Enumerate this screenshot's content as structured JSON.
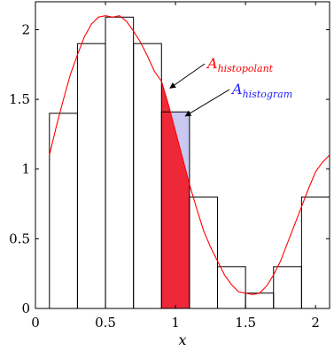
{
  "chart_data": {
    "type": "bar",
    "xlabel": "x",
    "xlim": [
      0,
      2.1
    ],
    "ylim": [
      0,
      2.2
    ],
    "xticks": [
      0,
      0.5,
      1,
      1.5,
      2
    ],
    "yticks": [
      0,
      0.5,
      1,
      1.5,
      2
    ],
    "xtick_labels": [
      "0",
      "0.5",
      "1",
      "1.5",
      "2"
    ],
    "ytick_labels": [
      "0",
      "0.5",
      "1",
      "1.5",
      "2"
    ],
    "bins": [
      {
        "x0": 0.1,
        "x1": 0.3,
        "value": 1.4
      },
      {
        "x0": 0.3,
        "x1": 0.5,
        "value": 1.9
      },
      {
        "x0": 0.5,
        "x1": 0.7,
        "value": 2.09
      },
      {
        "x0": 0.7,
        "x1": 0.9,
        "value": 1.9
      },
      {
        "x0": 0.9,
        "x1": 1.1,
        "value": 1.41
      },
      {
        "x0": 1.1,
        "x1": 1.3,
        "value": 0.8
      },
      {
        "x0": 1.3,
        "x1": 1.5,
        "value": 0.3
      },
      {
        "x0": 1.5,
        "x1": 1.7,
        "value": 0.11
      },
      {
        "x0": 1.7,
        "x1": 1.9,
        "value": 0.3
      },
      {
        "x0": 1.9,
        "x1": 2.1,
        "value": 0.8
      }
    ],
    "curve": {
      "x": [
        0.1,
        0.15,
        0.2,
        0.25,
        0.3,
        0.35,
        0.4,
        0.45,
        0.5,
        0.55,
        0.6,
        0.65,
        0.7,
        0.75,
        0.8,
        0.85,
        0.9,
        0.95,
        1.0,
        1.05,
        1.1,
        1.15,
        1.2,
        1.25,
        1.3,
        1.35,
        1.4,
        1.45,
        1.5,
        1.55,
        1.6,
        1.65,
        1.7,
        1.75,
        1.8,
        1.85,
        1.9,
        1.95,
        2.0,
        2.05,
        2.1
      ],
      "y": [
        1.1,
        1.31,
        1.5,
        1.68,
        1.82,
        1.95,
        2.04,
        2.09,
        2.1,
        2.09,
        2.1,
        2.06,
        1.99,
        1.91,
        1.81,
        1.7,
        1.63,
        1.46,
        1.27,
        1.08,
        0.89,
        0.72,
        0.56,
        0.44,
        0.34,
        0.24,
        0.17,
        0.12,
        0.11,
        0.1,
        0.11,
        0.16,
        0.24,
        0.34,
        0.47,
        0.6,
        0.73,
        0.86,
        0.98,
        1.05,
        1.1
      ],
      "color": "#ff0000"
    },
    "highlight": {
      "bin_x0": 0.9,
      "bin_x1": 1.1,
      "histopolant_fill": "#f0202e",
      "histogram_fill": "#c8c8f0"
    },
    "annotations": [
      {
        "main": "A",
        "sub": "histopolant",
        "color": "#ff0000",
        "target": [
          0.96,
          1.58
        ]
      },
      {
        "main": "A",
        "sub": "histogram",
        "color": "#2020ff",
        "target": [
          1.07,
          1.38
        ]
      }
    ]
  }
}
